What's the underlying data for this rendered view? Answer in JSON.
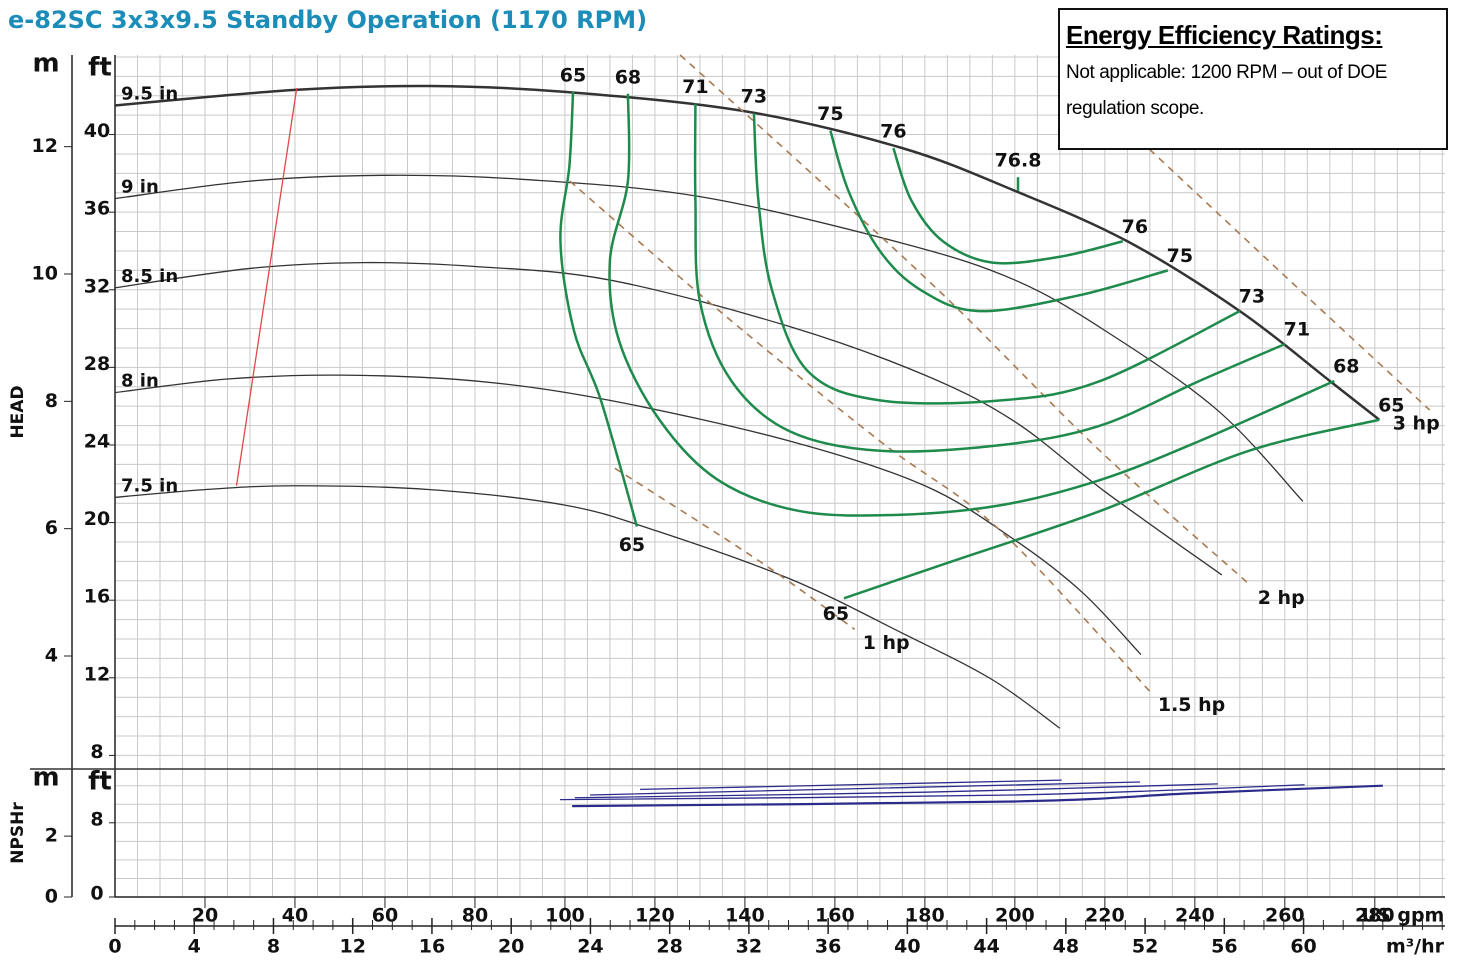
{
  "chart_data": {
    "type": "line",
    "title": "e-82SC 3x3x9.5 Standby Operation (1170 RPM)",
    "box": {
      "heading": "Energy Efficiency Ratings:",
      "text": "Not applicable: 1200 RPM – out of DOE regulation scope."
    },
    "xlim": [
      0,
      295.6
    ],
    "xticks": [
      20,
      40,
      60,
      80,
      100,
      120,
      140,
      160,
      180,
      200,
      220,
      240,
      260,
      280
    ],
    "x_label": "US gpm",
    "x2lim": [
      0,
      67.14
    ],
    "x2ticks": [
      0,
      4,
      8,
      12,
      16,
      20,
      24,
      28,
      32,
      36,
      40,
      44,
      48,
      52,
      56,
      60
    ],
    "x2_label": "m³/hr",
    "minor_grid": {
      "x": 5,
      "y": 1,
      "npsh_y": 2,
      "x2": 1
    },
    "head": {
      "label": "HEAD",
      "unit": "ft",
      "unit2": "m",
      "ylim": [
        7.3,
        44.1
      ],
      "yticks": [
        8,
        12,
        16,
        20,
        24,
        28,
        32,
        36,
        40
      ],
      "y2lim": [
        2.225,
        13.44
      ],
      "y2ticks": [
        4,
        6,
        8,
        10,
        12
      ]
    },
    "npsh": {
      "label": "NPSHr",
      "unit": "ft",
      "unit2": "m",
      "ylim": [
        0,
        13.8
      ],
      "yticks": [
        0,
        8
      ],
      "y2lim": [
        0,
        4.206
      ],
      "y2ticks": [
        0,
        2
      ],
      "color": "#2b2b8c",
      "series": [
        {
          "x": [
            116.7,
            210.4
          ],
          "y": [
            11.6,
            12.6
          ]
        },
        {
          "x": [
            105.6,
            227.8
          ],
          "y": [
            11.0,
            12.4
          ]
        },
        {
          "x": [
            102.2,
            180,
            245.1
          ],
          "y": [
            10.7,
            11.3,
            12.2
          ]
        },
        {
          "x": [
            98.9,
            200,
            264.4
          ],
          "y": [
            10.5,
            11.0,
            12.1
          ]
        },
        {
          "x": [
            101.6,
            200,
            240,
            281.8
          ],
          "y": [
            9.8,
            10.3,
            11.2,
            12.0
          ]
        }
      ]
    },
    "impellers": {
      "color": "#333333",
      "series": [
        {
          "name": "9.5 in",
          "x": [
            0,
            40,
            70,
            100,
            140,
            175,
            200,
            225,
            250,
            270,
            281
          ],
          "y": [
            41.5,
            42.3,
            42.5,
            42.2,
            41.2,
            39.3,
            37.1,
            34.5,
            30.9,
            27.3,
            25.3
          ]
        },
        {
          "name": "9 in",
          "x": [
            0,
            30,
            60,
            90,
            130,
            175,
            200,
            220,
            245,
            264
          ],
          "y": [
            36.7,
            37.6,
            37.9,
            37.7,
            36.8,
            34.4,
            32.5,
            29.9,
            25.8,
            21.1
          ]
        },
        {
          "name": "8.5 in",
          "x": [
            0,
            30,
            55,
            80,
            110,
            150,
            180,
            200,
            220,
            246
          ],
          "y": [
            32.1,
            33.1,
            33.4,
            33.2,
            32.5,
            30.1,
            27.6,
            25.2,
            21.6,
            17.3
          ]
        },
        {
          "name": "8 in",
          "x": [
            0,
            25,
            50,
            80,
            110,
            150,
            180,
            200,
            215,
            228
          ],
          "y": [
            26.7,
            27.4,
            27.6,
            27.3,
            26.3,
            24.2,
            21.9,
            19.1,
            16.4,
            13.2
          ]
        },
        {
          "name": "7.5 in",
          "x": [
            0,
            20,
            40,
            70,
            100,
            120,
            150,
            175,
            195,
            210
          ],
          "y": [
            21.3,
            21.7,
            21.9,
            21.7,
            20.9,
            19.6,
            17.1,
            14.3,
            11.9,
            9.4
          ]
        }
      ]
    },
    "min_flow": {
      "color": "#e04848",
      "x": [
        27,
        40.4
      ],
      "y": [
        21.9,
        42.4
      ]
    },
    "efficiency": {
      "color": "#1e8a4c",
      "series": [
        {
          "name": "65",
          "x": [
            101.8,
            101,
            99,
            102,
            108,
            116,
            null,
            162,
            186,
            219,
            252,
            281
          ],
          "y": [
            42.2,
            38.4,
            34.5,
            29.9,
            26.3,
            19.8,
            null,
            16.1,
            18.0,
            20.6,
            23.7,
            25.3
          ]
        },
        {
          "name": "68",
          "x": [
            114,
            114,
            110,
            112,
            121,
            134,
            152,
            174,
            197,
            219,
            241,
            271
          ],
          "y": [
            42.1,
            37.6,
            33.5,
            29.4,
            25.3,
            22.2,
            20.6,
            20.4,
            20.9,
            22.2,
            24.2,
            27.3
          ]
        },
        {
          "name": "71",
          "x": [
            129,
            129,
            130,
            137,
            150,
            170,
            197,
            219,
            241,
            260
          ],
          "y": [
            41.6,
            36.6,
            31.4,
            27.3,
            24.7,
            23.7,
            24.0,
            25.0,
            27.3,
            29.2
          ]
        },
        {
          "name": "73",
          "x": [
            142,
            143,
            146,
            154,
            170,
            197,
            219,
            250
          ],
          "y": [
            41.1,
            36.6,
            32.0,
            27.8,
            26.3,
            26.3,
            27.3,
            30.9
          ]
        },
        {
          "name": "75",
          "x": [
            159,
            163,
            170,
            179,
            192,
            214,
            234
          ],
          "y": [
            40.2,
            37.1,
            34.0,
            32.0,
            30.9,
            31.7,
            33.0
          ]
        },
        {
          "name": "76",
          "x": [
            173,
            177,
            184,
            195,
            210,
            224
          ],
          "y": [
            39.3,
            36.6,
            34.5,
            33.4,
            33.7,
            34.5
          ]
        },
        {
          "name": "76.8",
          "x": [
            200.7,
            200.7
          ],
          "y": [
            37.8,
            37.1
          ]
        }
      ]
    },
    "power": {
      "color": "#a87a52",
      "series": [
        {
          "name": "1 hp",
          "x": [
            111.1,
            143.3,
            164.4
          ],
          "y": [
            22.8,
            18.0,
            14.5
          ]
        },
        {
          "name": "1.5 hp",
          "x": [
            101.1,
            134.4,
            170,
            196.7,
            230
          ],
          "y": [
            37.6,
            30.9,
            24.2,
            19.6,
            11.3
          ]
        },
        {
          "name": "2 hp",
          "x": [
            125.6,
            156.7,
            185.6,
            218.9,
            252.2
          ],
          "y": [
            44.1,
            37.6,
            31.4,
            23.7,
            16.8
          ]
        },
        {
          "name": "3 hp",
          "x": [
            227.8,
            263.3,
            292.2
          ],
          "y": [
            39.7,
            32.0,
            25.8
          ]
        }
      ]
    }
  }
}
